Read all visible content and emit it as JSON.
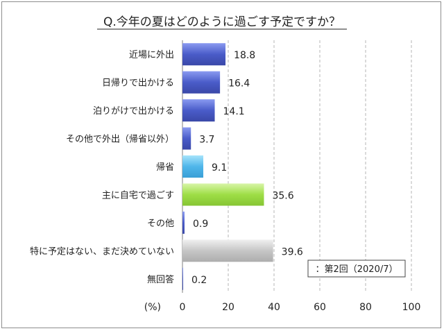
{
  "chart_data": {
    "type": "bar",
    "orientation": "horizontal",
    "title": "Q.今年の夏はどのように過ごす予定ですか？",
    "categories": [
      "近場に外出",
      "日帰りで出かける",
      "泊りがけで出かける",
      "その他で外出（帰省以外）",
      "帰省",
      "主に自宅で過ごす",
      "その他",
      "特に予定はない、まだ決めていない",
      "無回答"
    ],
    "values": [
      18.8,
      16.4,
      14.1,
      3.7,
      9.1,
      35.6,
      0.9,
      39.6,
      0.2
    ],
    "value_labels": [
      "18.8",
      "16.4",
      "14.1",
      "3.7",
      "9.1",
      "35.6",
      "0.9",
      "39.6",
      "0.2"
    ],
    "bar_colors": [
      "#4a5cc9",
      "#4a5cc9",
      "#4a5cc9",
      "#4a5cc9",
      "#4fb6ea",
      "#8fd63a",
      "#4a5cc9",
      "#bdbdbd",
      "#4a5cc9"
    ],
    "xlim": [
      0,
      100
    ],
    "xticks": [
      "0",
      "20",
      "40",
      "60",
      "80",
      "100"
    ],
    "xlabel": "(%)",
    "legend": {
      "text": "：第2回（2020/7）",
      "placement": "bottom-right"
    },
    "grid": "dashed-vertical"
  }
}
